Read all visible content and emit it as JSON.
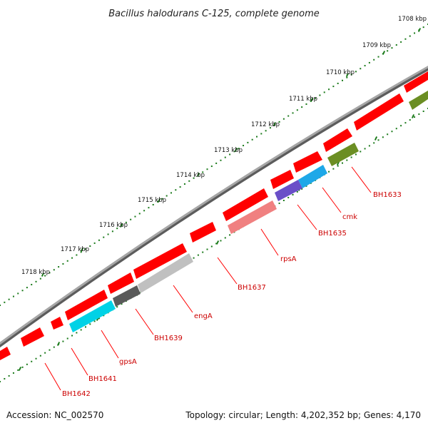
{
  "title": "Bacillus halodurans C-125, complete genome",
  "accession": "Accession: NC_002570",
  "summary": "Topology: circular; Length: 4,202,352 bp; Genes: 4,170",
  "colors": {
    "cds": "#ff0000",
    "backbone": "#808080",
    "ruler": "#1a7a1a",
    "label_red": "#cc0000",
    "cyan": "#00d2e6",
    "blue": "#1ea8e8",
    "purple": "#6a4fc8",
    "pink": "#f08080",
    "gray_dark": "#5a5a5a",
    "gray_light": "#c0c0c0",
    "olive": "#6b8e23"
  },
  "kbp_labels": [
    "1708 kbp",
    "1709 kbp",
    "1710 kbp",
    "1711 kbp",
    "1712 kbp",
    "1713 kbp",
    "1714 kbp",
    "1715 kbp",
    "1716 kbp",
    "1717 kbp",
    "1718 kbp"
  ],
  "gene_labels": [
    "BH1633",
    "cmk",
    "BH1635",
    "rpsA",
    "BH1637",
    "engA",
    "BH1639",
    "gpsA",
    "BH1641",
    "BH1642"
  ]
}
